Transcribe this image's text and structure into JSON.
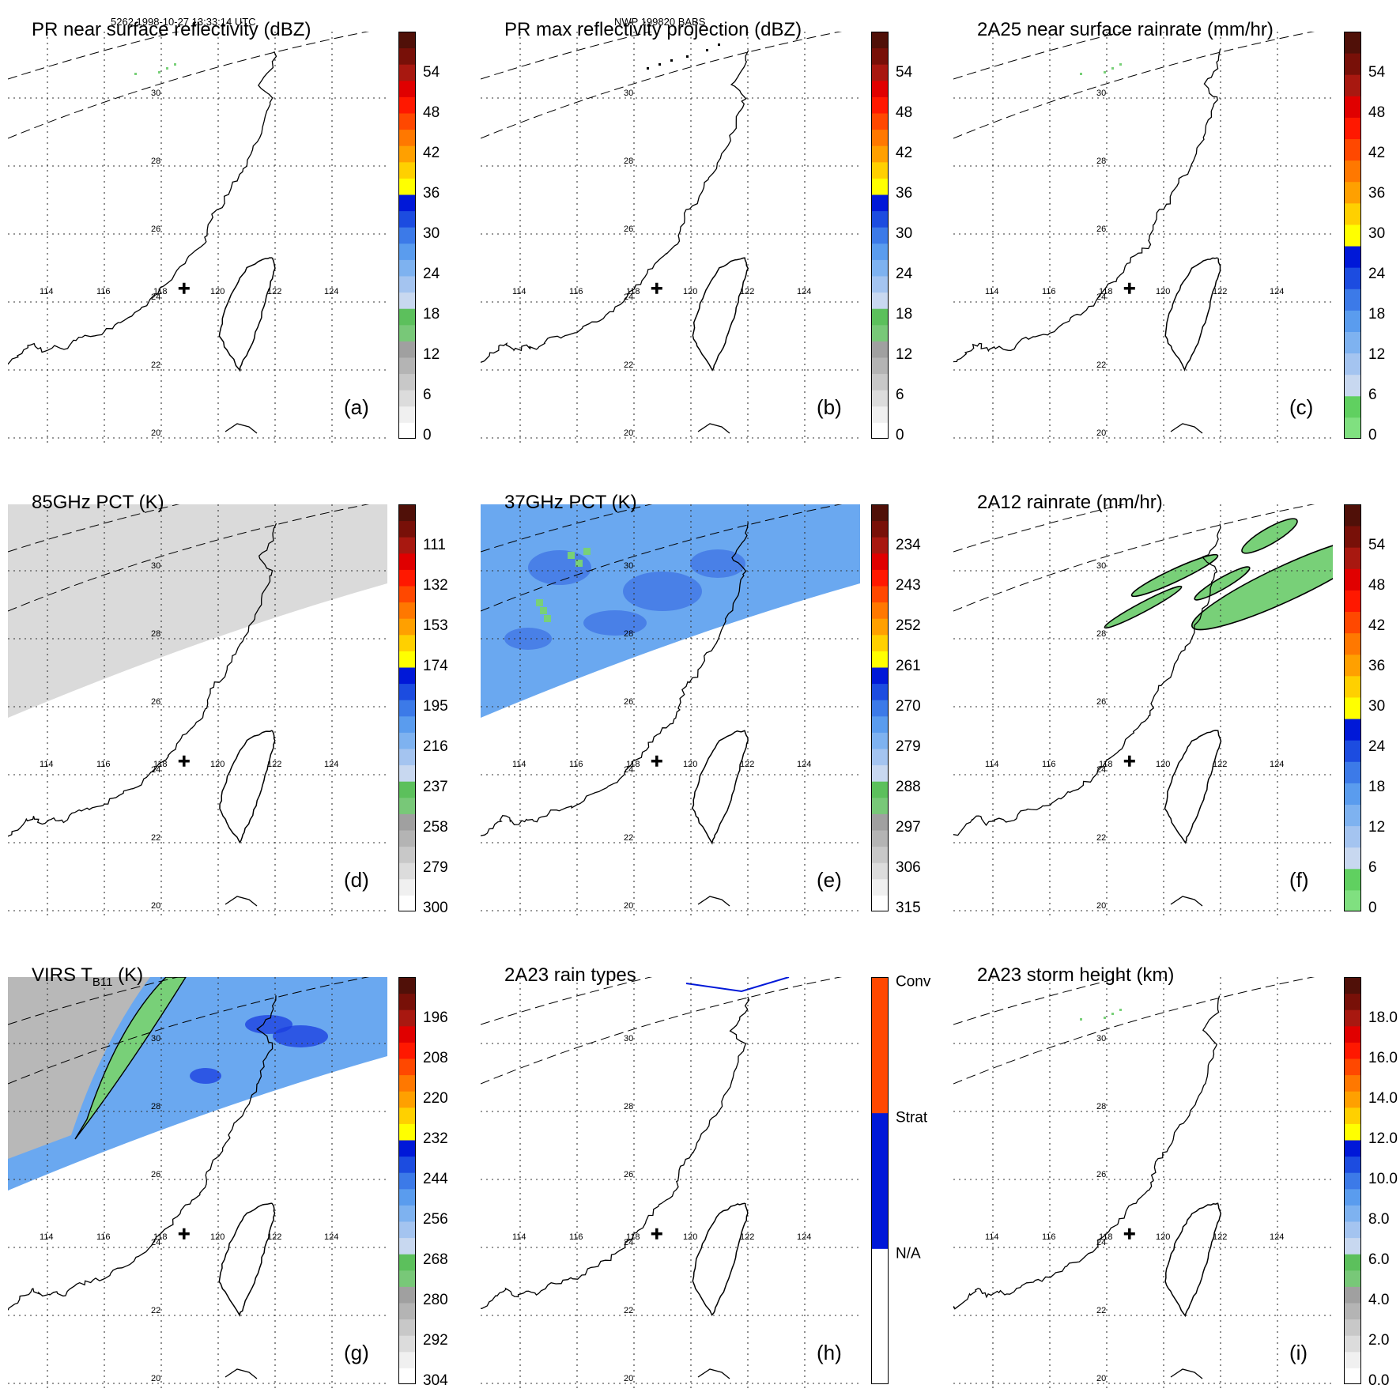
{
  "header": {
    "orbit_info": "5262 1998-10-27 13:33:14 UTC",
    "case_info": "NWP 199820 BABS"
  },
  "map_labels": {
    "lon_ticks": [
      "114",
      "116",
      "118",
      "120",
      "122",
      "124"
    ],
    "lat_ticks": [
      "30",
      "28",
      "26",
      "24",
      "22",
      "20"
    ]
  },
  "panels": [
    {
      "id": "a",
      "title": "PR near surface reflectivity (dBZ)",
      "label": "(a)",
      "field": "swath_pr_a",
      "colorbar": {
        "type": "refl",
        "ticks": [
          "54",
          "48",
          "42",
          "36",
          "30",
          "24",
          "18",
          "12",
          "6",
          "0"
        ]
      }
    },
    {
      "id": "b",
      "title": "PR max reflectivity projection (dBZ)",
      "label": "(b)",
      "field": "swath_pr_b",
      "colorbar": {
        "type": "refl",
        "ticks": [
          "54",
          "48",
          "42",
          "36",
          "30",
          "24",
          "18",
          "12",
          "6",
          "0"
        ]
      }
    },
    {
      "id": "c",
      "title": "2A25 near surface rainrate (mm/hr)",
      "label": "(c)",
      "field": "swath_pr_c",
      "colorbar": {
        "type": "rain",
        "ticks": [
          "54",
          "48",
          "42",
          "36",
          "30",
          "24",
          "18",
          "12",
          "6",
          "0"
        ]
      }
    },
    {
      "id": "d",
      "title": "85GHz PCT (K)",
      "label": "(d)",
      "field": "tmi_gray",
      "colorbar": {
        "type": "refl",
        "ticks": [
          "111",
          "132",
          "153",
          "174",
          "195",
          "216",
          "237",
          "258",
          "279",
          "300"
        ]
      }
    },
    {
      "id": "e",
      "title": "37GHz PCT (K)",
      "label": "(e)",
      "field": "tmi_blue",
      "colorbar": {
        "type": "refl",
        "ticks": [
          "234",
          "243",
          "252",
          "261",
          "270",
          "279",
          "288",
          "297",
          "306",
          "315"
        ]
      }
    },
    {
      "id": "f",
      "title": "2A12 rainrate (mm/hr)",
      "label": "(f)",
      "field": "tmi_rain",
      "colorbar": {
        "type": "rain",
        "ticks": [
          "54",
          "48",
          "42",
          "36",
          "30",
          "24",
          "18",
          "12",
          "6",
          "0"
        ]
      }
    },
    {
      "id": "g",
      "title": "VIRS T",
      "title_sub": "B11",
      "title_suffix": " (K)",
      "label": "(g)",
      "field": "virs",
      "colorbar": {
        "type": "refl",
        "ticks": [
          "196",
          "208",
          "220",
          "232",
          "244",
          "256",
          "268",
          "280",
          "292",
          "304"
        ]
      }
    },
    {
      "id": "h",
      "title": "2A23 rain types",
      "label": "(h)",
      "field": "pr_types",
      "colorbar": {
        "type": "types",
        "ticks": [
          "Conv",
          "Strat",
          "N/A"
        ]
      }
    },
    {
      "id": "i",
      "title": "2A23 storm height (km)",
      "label": "(i)",
      "field": "pr_height",
      "colorbar": {
        "type": "refl",
        "ticks": [
          "18.0",
          "16.0",
          "14.0",
          "12.0",
          "10.0",
          "8.0",
          "6.0",
          "4.0",
          "2.0",
          "0.0"
        ]
      }
    }
  ],
  "colors": {
    "refl_scale": [
      "#ffffff",
      "#f0f0f0",
      "#dcdcdc",
      "#c8c8c8",
      "#b4b4b4",
      "#a0a0a0",
      "#78c878",
      "#5cc05c",
      "#c8d8f0",
      "#a4c4f0",
      "#7eb2f0",
      "#5a9cee",
      "#3c7ae8",
      "#1c4ce0",
      "#0018d8",
      "#ffff00",
      "#ffd000",
      "#ffa000",
      "#ff7800",
      "#ff4800",
      "#ff1800",
      "#e00000",
      "#a81810",
      "#781008",
      "#501008"
    ],
    "rain_scale": [
      "#80e080",
      "#60d060",
      "#c8d8f0",
      "#a4c4f0",
      "#7eb2f0",
      "#5a9cee",
      "#3c7ae8",
      "#1c4ce0",
      "#0018d8",
      "#ffff00",
      "#ffd000",
      "#ffa000",
      "#ff7800",
      "#ff4800",
      "#ff1800",
      "#e00000",
      "#a81810",
      "#781008",
      "#501008"
    ],
    "types_scale": [
      "#ffffff",
      "#0018d8",
      "#ff4800"
    ],
    "coast": "#000000",
    "gray_field": "#dadada",
    "blue_field": "#6aa8f0",
    "green_field": "#78d078"
  }
}
